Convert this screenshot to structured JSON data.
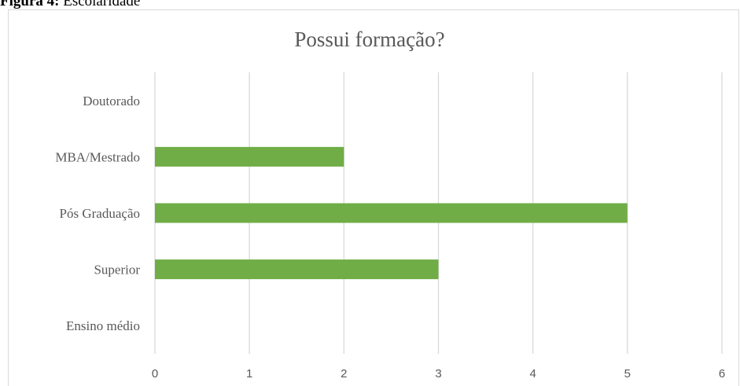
{
  "caption_label": "Figura 4:",
  "caption": "Escolaridade",
  "chart_data": {
    "type": "bar",
    "orientation": "horizontal",
    "title": "Possui formação?",
    "categories": [
      "Doutorado",
      "MBA/Mestrado",
      "Pós Graduação",
      "Superior",
      "Ensino médio"
    ],
    "values": [
      0,
      2,
      5,
      3,
      0
    ],
    "color": "#70ad47",
    "xlim": [
      0,
      6
    ],
    "xticks": [
      0,
      1,
      2,
      3,
      4,
      5,
      6
    ],
    "grid": true
  }
}
